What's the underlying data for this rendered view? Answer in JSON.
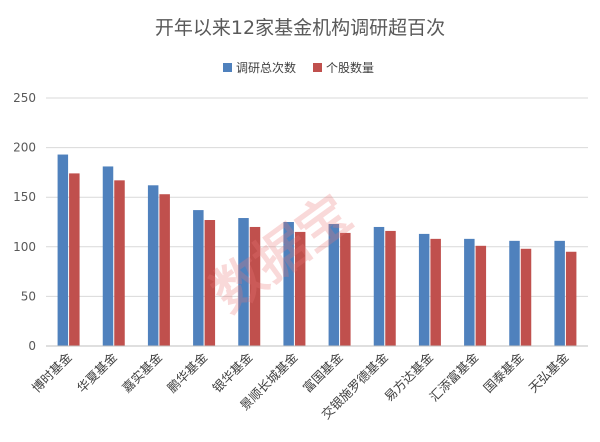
{
  "chart_data": {
    "type": "bar",
    "title": "开年以来12家基金机构调研超百次",
    "xlabel": "",
    "ylabel": "",
    "ylim": [
      0,
      250
    ],
    "yticks": [
      0,
      50,
      100,
      150,
      200,
      250
    ],
    "grid": true,
    "legend_position": "top",
    "categories": [
      "博时基金",
      "华夏基金",
      "嘉实基金",
      "鹏华基金",
      "银华基金",
      "景顺长城基金",
      "富国基金",
      "交银施罗德基金",
      "易方达基金",
      "汇添富基金",
      "国泰基金",
      "天弘基金"
    ],
    "series": [
      {
        "name": "调研总次数",
        "color": "#4f81bd",
        "values": [
          193,
          181,
          162,
          137,
          129,
          125,
          123,
          120,
          113,
          108,
          106,
          106
        ]
      },
      {
        "name": "个股数量",
        "color": "#c0504d",
        "values": [
          174,
          167,
          153,
          127,
          120,
          115,
          114,
          116,
          108,
          101,
          98,
          95
        ]
      }
    ]
  },
  "watermark": "数据宝"
}
